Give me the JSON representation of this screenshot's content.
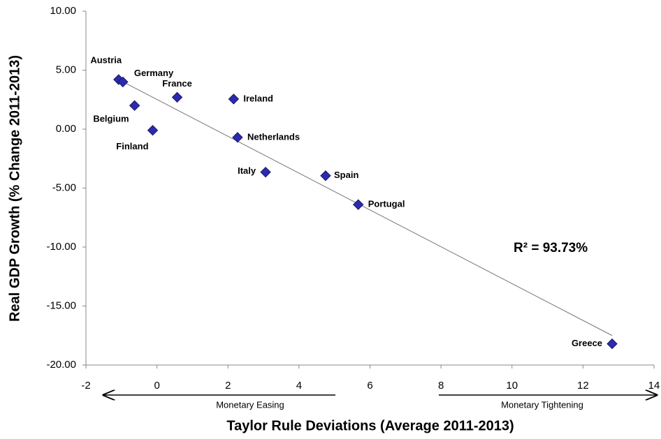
{
  "chart_data": {
    "type": "scatter",
    "x_label": "Taylor Rule Deviations (Average 2011-2013)",
    "y_label": "Real GDP Growth (% Change 2011-2013)",
    "annotation": "R² = 93.73%",
    "easing_label": "Monetary Easing",
    "tightening_label": "Monetary Tightening",
    "point_labels": [
      "Austria",
      "Germany",
      "Belgium",
      "Finland",
      "France",
      "Ireland",
      "Netherlands",
      "Italy",
      "Spain",
      "Portugal",
      "Greece"
    ],
    "x": [
      -1.08,
      -0.96,
      -0.63,
      -0.12,
      0.57,
      2.16,
      2.27,
      3.06,
      4.75,
      5.67,
      12.82
    ],
    "y": [
      4.2,
      4.0,
      2.0,
      -0.1,
      2.7,
      2.55,
      -0.7,
      -3.65,
      -3.95,
      -6.4,
      -18.2
    ],
    "color": "#2b2ab0",
    "trendline": {
      "x": [
        -1.08,
        12.82
      ],
      "y": [
        4.2,
        -17.5
      ],
      "color": "#777777"
    },
    "xlim": [
      -2,
      14
    ],
    "xticks": [
      -2,
      0,
      2,
      4,
      6,
      8,
      10,
      12,
      14
    ],
    "ylim": [
      -20,
      10
    ],
    "yticks": [
      {
        "value": -20,
        "label": "-20.00"
      },
      {
        "value": -15,
        "label": "-15.00"
      },
      {
        "value": -10,
        "label": "-10.00"
      },
      {
        "value": -5,
        "label": "-5.00"
      },
      {
        "value": 0,
        "label": "0.00"
      },
      {
        "value": 5,
        "label": "5.00"
      },
      {
        "value": 10,
        "label": "10.00"
      }
    ]
  }
}
